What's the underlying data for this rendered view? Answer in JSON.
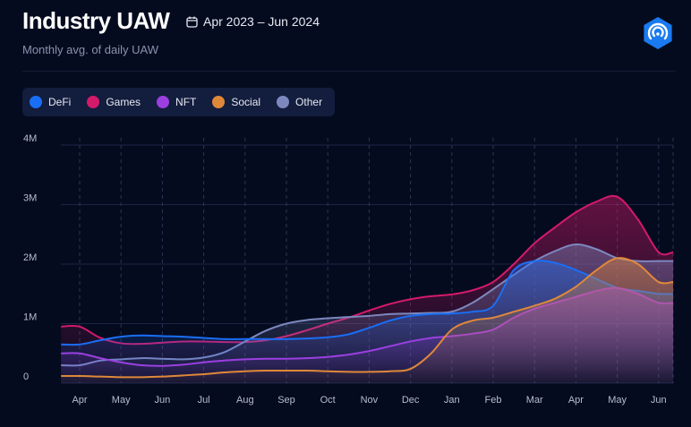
{
  "header": {
    "title": "Industry UAW",
    "date_range": "Apr 2023 – Jun 2024",
    "subtitle": "Monthly avg. of daily UAW"
  },
  "icons": {
    "calendar": "calendar-icon",
    "logo": "dappradar-logo-icon"
  },
  "chart_data": {
    "type": "area",
    "x": [
      "Apr",
      "May",
      "Jun",
      "Jul",
      "Aug",
      "Sep",
      "Oct",
      "Nov",
      "Dec",
      "Jan",
      "Feb",
      "Mar",
      "Apr",
      "May",
      "Jun"
    ],
    "y_ticks": [
      "0",
      "1M",
      "2M",
      "3M",
      "4M"
    ],
    "ylim": [
      0,
      4000000
    ],
    "grid": true,
    "legend_position": "top-left",
    "series": [
      {
        "name": "DeFi",
        "color": "#1a6ef5",
        "points": [
          [
            0,
            650000
          ],
          [
            0.5,
            720000
          ],
          [
            1,
            780000
          ],
          [
            1.5,
            800000
          ],
          [
            2,
            790000
          ],
          [
            2.5,
            780000
          ],
          [
            3,
            760000
          ],
          [
            3.5,
            740000
          ],
          [
            4,
            740000
          ],
          [
            4.5,
            740000
          ],
          [
            5,
            740000
          ],
          [
            5.5,
            750000
          ],
          [
            6,
            770000
          ],
          [
            6.5,
            820000
          ],
          [
            7,
            930000
          ],
          [
            7.5,
            1050000
          ],
          [
            8,
            1130000
          ],
          [
            8.5,
            1160000
          ],
          [
            9,
            1170000
          ],
          [
            9.5,
            1200000
          ],
          [
            10,
            1300000
          ],
          [
            10.5,
            1900000
          ],
          [
            11,
            2050000
          ],
          [
            11.5,
            2020000
          ],
          [
            12,
            1900000
          ],
          [
            12.5,
            1750000
          ],
          [
            13,
            1600000
          ],
          [
            13.5,
            1550000
          ],
          [
            14,
            1500000
          ]
        ]
      },
      {
        "name": "Games",
        "color": "#d41a6a",
        "points": [
          [
            0,
            950000
          ],
          [
            0.5,
            760000
          ],
          [
            1,
            670000
          ],
          [
            1.5,
            660000
          ],
          [
            2,
            680000
          ],
          [
            2.5,
            700000
          ],
          [
            3,
            700000
          ],
          [
            3.5,
            690000
          ],
          [
            4,
            690000
          ],
          [
            4.5,
            720000
          ],
          [
            5,
            790000
          ],
          [
            5.5,
            890000
          ],
          [
            6,
            1000000
          ],
          [
            6.5,
            1100000
          ],
          [
            7,
            1220000
          ],
          [
            7.5,
            1330000
          ],
          [
            8,
            1410000
          ],
          [
            8.5,
            1460000
          ],
          [
            9,
            1490000
          ],
          [
            9.5,
            1560000
          ],
          [
            10,
            1700000
          ],
          [
            10.5,
            2000000
          ],
          [
            11,
            2350000
          ],
          [
            11.5,
            2620000
          ],
          [
            12,
            2870000
          ],
          [
            12.5,
            3050000
          ],
          [
            13,
            3130000
          ],
          [
            13.5,
            2750000
          ],
          [
            14,
            2200000
          ]
        ]
      },
      {
        "name": "NFT",
        "color": "#9b3fe0",
        "points": [
          [
            0,
            500000
          ],
          [
            0.5,
            420000
          ],
          [
            1,
            350000
          ],
          [
            1.5,
            300000
          ],
          [
            2,
            290000
          ],
          [
            2.5,
            310000
          ],
          [
            3,
            350000
          ],
          [
            3.5,
            380000
          ],
          [
            4,
            400000
          ],
          [
            4.5,
            410000
          ],
          [
            5,
            410000
          ],
          [
            5.5,
            420000
          ],
          [
            6,
            440000
          ],
          [
            6.5,
            480000
          ],
          [
            7,
            540000
          ],
          [
            7.5,
            620000
          ],
          [
            8,
            700000
          ],
          [
            8.5,
            760000
          ],
          [
            9,
            790000
          ],
          [
            9.5,
            830000
          ],
          [
            10,
            900000
          ],
          [
            10.5,
            1100000
          ],
          [
            11,
            1250000
          ],
          [
            11.5,
            1350000
          ],
          [
            12,
            1450000
          ],
          [
            12.5,
            1550000
          ],
          [
            13,
            1600000
          ],
          [
            13.5,
            1500000
          ],
          [
            14,
            1350000
          ]
        ]
      },
      {
        "name": "Social",
        "color": "#e0883a",
        "points": [
          [
            0,
            120000
          ],
          [
            0.5,
            110000
          ],
          [
            1,
            100000
          ],
          [
            1.5,
            100000
          ],
          [
            2,
            110000
          ],
          [
            2.5,
            130000
          ],
          [
            3,
            150000
          ],
          [
            3.5,
            180000
          ],
          [
            4,
            200000
          ],
          [
            4.5,
            210000
          ],
          [
            5,
            210000
          ],
          [
            5.5,
            210000
          ],
          [
            6,
            200000
          ],
          [
            6.5,
            190000
          ],
          [
            7,
            190000
          ],
          [
            7.5,
            200000
          ],
          [
            8,
            240000
          ],
          [
            8.5,
            500000
          ],
          [
            9,
            900000
          ],
          [
            9.5,
            1050000
          ],
          [
            10,
            1100000
          ],
          [
            10.5,
            1200000
          ],
          [
            11,
            1300000
          ],
          [
            11.5,
            1420000
          ],
          [
            12,
            1620000
          ],
          [
            12.5,
            1900000
          ],
          [
            13,
            2100000
          ],
          [
            13.5,
            2000000
          ],
          [
            14,
            1700000
          ]
        ]
      },
      {
        "name": "Other",
        "color": "#7d88bf",
        "points": [
          [
            0,
            300000
          ],
          [
            0.5,
            380000
          ],
          [
            1,
            400000
          ],
          [
            1.5,
            420000
          ],
          [
            2,
            410000
          ],
          [
            2.5,
            400000
          ],
          [
            3,
            430000
          ],
          [
            3.5,
            520000
          ],
          [
            4,
            700000
          ],
          [
            4.5,
            880000
          ],
          [
            5,
            1000000
          ],
          [
            5.5,
            1060000
          ],
          [
            6,
            1090000
          ],
          [
            6.5,
            1110000
          ],
          [
            7,
            1130000
          ],
          [
            7.5,
            1160000
          ],
          [
            8,
            1170000
          ],
          [
            8.5,
            1180000
          ],
          [
            9,
            1200000
          ],
          [
            9.5,
            1350000
          ],
          [
            10,
            1580000
          ],
          [
            10.5,
            1820000
          ],
          [
            11,
            2050000
          ],
          [
            11.5,
            2220000
          ],
          [
            12,
            2330000
          ],
          [
            12.5,
            2250000
          ],
          [
            13,
            2100000
          ],
          [
            13.5,
            2050000
          ],
          [
            14,
            2050000
          ]
        ]
      }
    ]
  }
}
